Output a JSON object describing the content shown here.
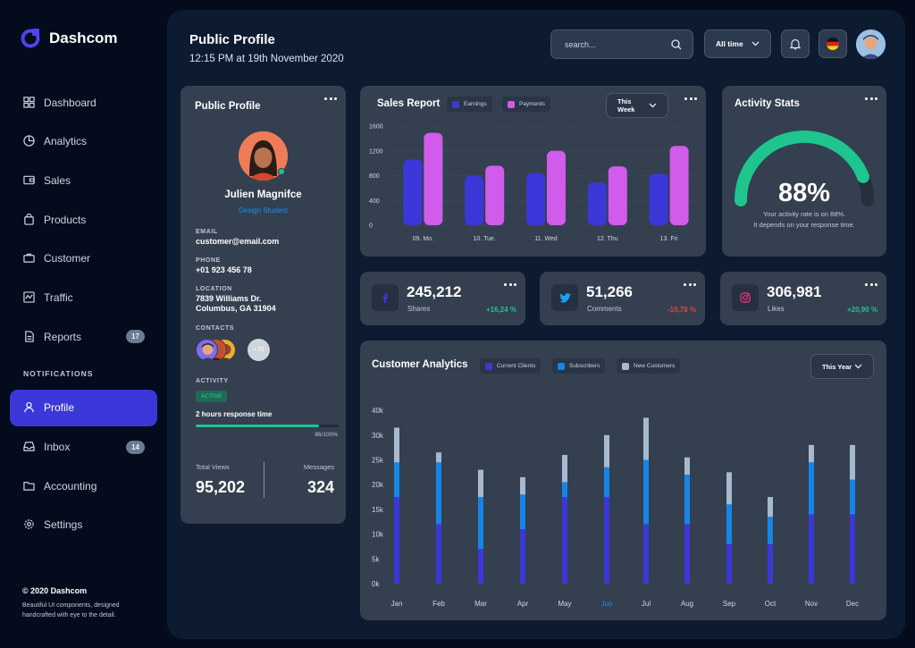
{
  "brand": {
    "name": "Dashcom"
  },
  "nav": {
    "items": [
      {
        "label": "Dashboard",
        "icon": "grid-icon"
      },
      {
        "label": "Analytics",
        "icon": "pie-icon"
      },
      {
        "label": "Sales",
        "icon": "wallet-icon"
      },
      {
        "label": "Products",
        "icon": "bag-icon"
      },
      {
        "label": "Customer",
        "icon": "briefcase-icon"
      },
      {
        "label": "Traffic",
        "icon": "activity-icon"
      },
      {
        "label": "Reports",
        "icon": "document-icon",
        "badge": "17"
      }
    ],
    "section_label": "NOTIFICATIONS",
    "notification_items": [
      {
        "label": "Profile",
        "icon": "user-icon",
        "active": true
      },
      {
        "label": "Inbox",
        "icon": "inbox-icon",
        "badge": "14"
      },
      {
        "label": "Accounting",
        "icon": "folder-icon"
      },
      {
        "label": "Settings",
        "icon": "gear-icon"
      }
    ]
  },
  "footer": {
    "copyright": "© 2020 Dashcom",
    "description_line1": "Beautiful UI components, designed",
    "description_line2": "handcrafted with eye to the detail."
  },
  "header": {
    "title": "Public Profile",
    "subtitle": "12:15 PM at 19th November 2020",
    "search_placeholder": "search...",
    "period_select": "All time"
  },
  "profile": {
    "title": "Public Profile",
    "name": "Julien Magnifce",
    "role": "Design Student",
    "email_label": "EMAIL",
    "email": "customer@email.com",
    "phone_label": "PHONE",
    "phone": "+01 923 456 78",
    "location_label": "LOCATION",
    "location_line1": "7839 Williams Dr.",
    "location_line2": "Columbus, GA 31904",
    "contacts_label": "CONTACTS",
    "contacts_more": "+75",
    "activity_label": "ACTIVITY",
    "activity_status": "ACTIVE",
    "response_time": "2 hours response time",
    "progress_percent": 86,
    "progress_text": "86/100%",
    "total_views_label": "Total Views",
    "total_views": "95,202",
    "messages_label": "Messages",
    "messages": "324"
  },
  "sales_report": {
    "title": "Sales Report",
    "legend_earnings": "Earnings",
    "legend_payments": "Payments",
    "period_select": "This Week",
    "colors": {
      "earnings": "#3b37d8",
      "payments": "#d15bea"
    }
  },
  "activity_stats": {
    "title": "Activity Stats",
    "percent": 88,
    "percent_text": "88%",
    "desc_line1": "Your activity rate is on 88%.",
    "desc_line2": "It depends on your response time."
  },
  "stats": [
    {
      "icon": "facebook-icon",
      "value": "245,212",
      "label": "Shares",
      "change": "+16,24 %",
      "change_color": "#1fc58e",
      "icon_color": "#3b37d8"
    },
    {
      "icon": "twitter-icon",
      "value": "51,266",
      "label": "Comments",
      "change": "-10,78 %",
      "change_color": "#ef3f3f",
      "icon_color": "#1da1f2"
    },
    {
      "icon": "instagram-icon",
      "value": "306,981",
      "label": "Likes",
      "change": "+20,90 %",
      "change_color": "#1fc58e",
      "icon_color": "#e1306c"
    }
  ],
  "customer_analytics": {
    "title": "Customer Analytics",
    "legend_current": "Current Clients",
    "legend_subscribers": "Subscribers",
    "legend_new": "New Customers",
    "period_select": "This Year",
    "highlight_month": "Jun",
    "colors": {
      "current": "#3b37d8",
      "subscribers": "#1585e8",
      "new": "#a6b9cf"
    }
  },
  "chart_data": [
    {
      "type": "bar",
      "title": "Sales Report",
      "categories": [
        "09. Mo.",
        "10. Tue.",
        "11. Wed",
        "12. Thu",
        "13. Fri"
      ],
      "series": [
        {
          "name": "Earnings",
          "values": [
            1060,
            800,
            840,
            690,
            830
          ]
        },
        {
          "name": "Payments",
          "values": [
            1490,
            960,
            1200,
            950,
            1280
          ]
        }
      ],
      "ylim": [
        0,
        1600
      ],
      "yticks": [
        0,
        400,
        800,
        1200,
        1600
      ],
      "grid": true,
      "legend": "top"
    },
    {
      "type": "bar",
      "title": "Customer Analytics",
      "categories": [
        "Jan",
        "Feb",
        "Mar",
        "Apr",
        "May",
        "Jun",
        "Jul",
        "Aug",
        "Sep",
        "Oct",
        "Nov",
        "Dec"
      ],
      "stacked": true,
      "series": [
        {
          "name": "Current Clients",
          "values": [
            17500,
            12000,
            7000,
            11000,
            17500,
            17500,
            12000,
            12000,
            8000,
            8000,
            14000,
            14000
          ]
        },
        {
          "name": "Subscribers",
          "values": [
            7000,
            12500,
            10500,
            7000,
            3000,
            6000,
            13000,
            10000,
            8000,
            5500,
            10500,
            7000
          ]
        },
        {
          "name": "New Customers",
          "values": [
            7000,
            2000,
            5500,
            3500,
            5500,
            6500,
            8500,
            3500,
            6500,
            4000,
            3500,
            7000
          ]
        }
      ],
      "ylim": [
        0,
        40000
      ],
      "ytick_labels": [
        "0k",
        "5k",
        "10k",
        "15k",
        "20k",
        "25k",
        "30k",
        "40k"
      ],
      "legend": "top"
    }
  ]
}
